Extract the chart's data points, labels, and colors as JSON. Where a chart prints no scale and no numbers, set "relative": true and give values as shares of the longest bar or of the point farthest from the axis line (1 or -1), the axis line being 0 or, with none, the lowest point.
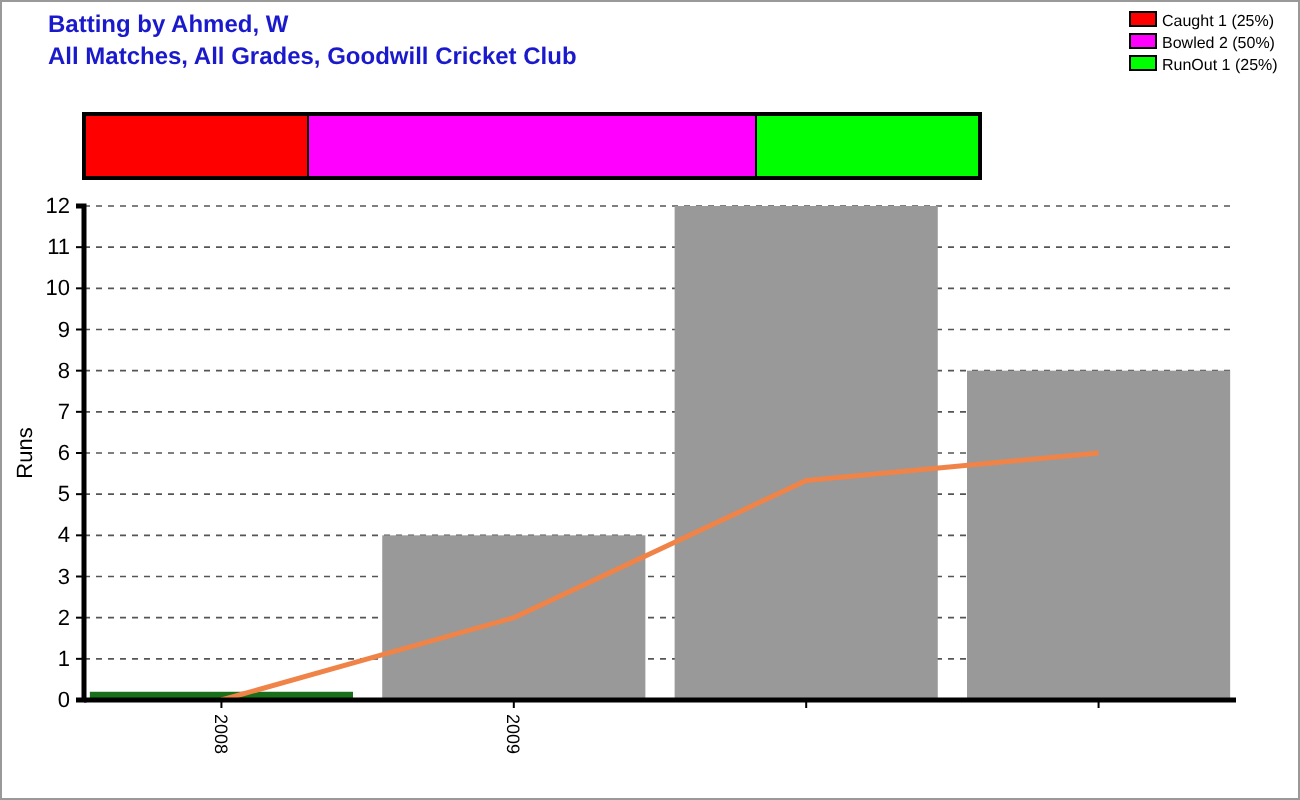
{
  "chart_data": [
    {
      "type": "bar",
      "title": "Batting by Ahmed, W",
      "subtitle": "All Matches, All Grades, Goodwill Cricket Club",
      "orientation": "horizontal",
      "stacked": true,
      "relative": true,
      "legend": "top right",
      "categories": [
        null
      ],
      "series": [
        {
          "name": "Caught 1 (25%)",
          "color": "#ff0000",
          "values": [
            0.25
          ]
        },
        {
          "name": "Bowled 2 (50%)",
          "color": "#ff00ff",
          "values": [
            0.5
          ]
        },
        {
          "name": "RunOut 1 (25%)",
          "color": "#00ff00",
          "values": [
            0.25
          ]
        }
      ]
    },
    {
      "type": "bar",
      "ylabel": "Runs",
      "categories": [
        "2008",
        "2009",
        null,
        null
      ],
      "ylim": [
        0,
        12
      ],
      "yticks": [
        0,
        1,
        2,
        3,
        4,
        5,
        6,
        7,
        8,
        9,
        10,
        11,
        12
      ],
      "grid": "y",
      "series": [
        {
          "type": "bar",
          "colors": [
            "#1a701a",
            "#999999",
            "#999999",
            "#999999"
          ],
          "values": [
            0.2,
            4,
            12,
            8
          ]
        },
        {
          "type": "line",
          "color": "#f08448",
          "values": [
            0,
            2,
            5.33,
            6
          ]
        }
      ]
    }
  ]
}
